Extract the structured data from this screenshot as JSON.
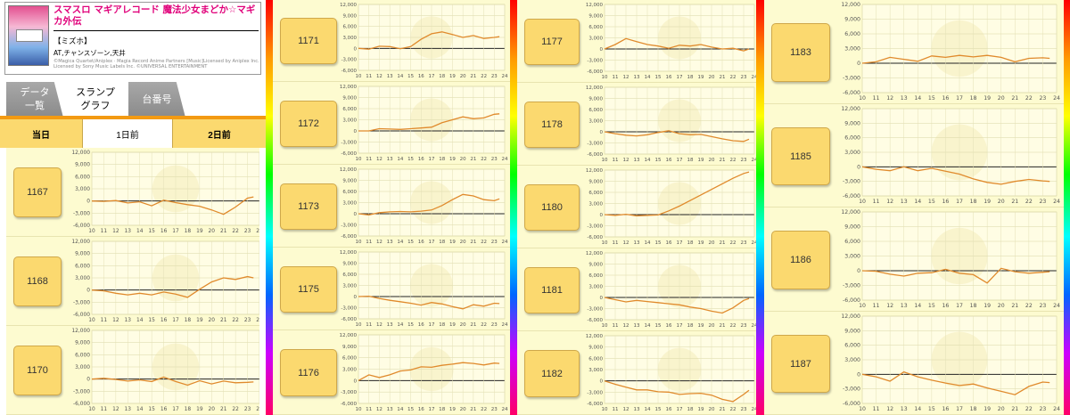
{
  "machine": {
    "title": "スマスロ マギアレコード 魔法少女まどか☆マギカ外伝",
    "area": "【ミズホ】",
    "type": "AT,チャンスゾーン,天井",
    "copyright": "©Magica Quartet/Aniplex · Magia Record Anime Partners [Music]Licensed by Aniplex Inc. Licensed by Sony Music Labels Inc. ©UNIVERSAL ENTERTAINMENT"
  },
  "tabs": [
    {
      "label": "データ\n一覧"
    },
    {
      "label": "スランプ\nグラフ"
    },
    {
      "label": "台番号"
    }
  ],
  "days": [
    {
      "label": "当日"
    },
    {
      "label": "1日前"
    },
    {
      "label": "2日前"
    }
  ],
  "axis": {
    "y_ticks": [
      "12,000",
      "9,000",
      "6,000",
      "3,000",
      "0",
      "-3,000",
      "-6,000"
    ],
    "x_ticks": [
      "10",
      "11",
      "12",
      "13",
      "14",
      "15",
      "16",
      "17",
      "18",
      "19",
      "20",
      "21",
      "22",
      "23",
      "24"
    ]
  },
  "chart_data": [
    {
      "type": "line",
      "machine": "1167",
      "ylim": [
        -6000,
        12000
      ],
      "x": [
        10,
        11,
        12,
        13,
        14,
        15,
        16,
        17,
        18,
        19,
        20,
        21,
        22,
        23,
        23.5
      ],
      "y": [
        0,
        -100,
        100,
        -500,
        -200,
        -1200,
        200,
        -400,
        -900,
        -1300,
        -2200,
        -3300,
        -1500,
        700,
        1000
      ]
    },
    {
      "type": "line",
      "machine": "1168",
      "ylim": [
        -6000,
        12000
      ],
      "x": [
        10,
        11,
        12,
        13,
        14,
        15,
        16,
        17,
        18,
        19,
        20,
        21,
        22,
        23,
        23.5
      ],
      "y": [
        0,
        -200,
        -800,
        -1200,
        -800,
        -1200,
        -500,
        -1000,
        -1800,
        200,
        2000,
        3000,
        2600,
        3300,
        3000
      ]
    },
    {
      "type": "line",
      "machine": "1170",
      "ylim": [
        -6000,
        12000
      ],
      "x": [
        10,
        11,
        12,
        13,
        14,
        15,
        16,
        17,
        18,
        19,
        20,
        21,
        22,
        23,
        23.5
      ],
      "y": [
        0,
        200,
        -100,
        -500,
        -200,
        -600,
        500,
        -600,
        -1500,
        -400,
        -1200,
        -500,
        -900,
        -800,
        -700
      ]
    },
    {
      "type": "line",
      "machine": "1171",
      "ylim": [
        -6000,
        12000
      ],
      "x": [
        10,
        11,
        12,
        13,
        14,
        15,
        16,
        17,
        18,
        19,
        20,
        21,
        22,
        23,
        23.5
      ],
      "y": [
        0,
        -200,
        600,
        500,
        -100,
        500,
        2500,
        4000,
        4500,
        3800,
        3000,
        3500,
        2700,
        3000,
        3200
      ]
    },
    {
      "type": "line",
      "machine": "1172",
      "ylim": [
        -6000,
        12000
      ],
      "x": [
        10,
        11,
        12,
        13,
        14,
        15,
        16,
        17,
        18,
        19,
        20,
        21,
        22,
        23,
        23.5
      ],
      "y": [
        0,
        0,
        600,
        500,
        400,
        600,
        800,
        1000,
        2200,
        3000,
        3800,
        3300,
        3500,
        4500,
        4600
      ]
    },
    {
      "type": "line",
      "machine": "1173",
      "ylim": [
        -6000,
        12000
      ],
      "x": [
        10,
        11,
        12,
        13,
        14,
        15,
        16,
        17,
        18,
        19,
        20,
        21,
        22,
        23,
        23.5
      ],
      "y": [
        0,
        -300,
        300,
        500,
        600,
        500,
        700,
        1000,
        2200,
        3800,
        5200,
        4800,
        3800,
        3500,
        4000
      ]
    },
    {
      "type": "line",
      "machine": "1175",
      "ylim": [
        -6000,
        12000
      ],
      "x": [
        10,
        11,
        12,
        13,
        14,
        15,
        16,
        17,
        18,
        19,
        20,
        21,
        22,
        23,
        23.5
      ],
      "y": [
        0,
        100,
        -500,
        -1000,
        -1400,
        -1800,
        -2300,
        -1600,
        -2000,
        -2700,
        -3300,
        -2200,
        -2600,
        -1800,
        -1900
      ]
    },
    {
      "type": "line",
      "machine": "1176",
      "ylim": [
        -6000,
        12000
      ],
      "x": [
        10,
        11,
        12,
        13,
        14,
        15,
        16,
        17,
        18,
        19,
        20,
        21,
        22,
        23,
        23.5
      ],
      "y": [
        0,
        1500,
        800,
        1500,
        2500,
        2800,
        3600,
        3500,
        4000,
        4300,
        4700,
        4500,
        4100,
        4600,
        4500
      ]
    },
    {
      "type": "line",
      "machine": "1177",
      "ylim": [
        -6000,
        12000
      ],
      "x": [
        10,
        11,
        12,
        13,
        14,
        15,
        16,
        17,
        18,
        19,
        20,
        21,
        22,
        23,
        23.5
      ],
      "y": [
        0,
        1200,
        2800,
        2000,
        1200,
        800,
        200,
        1000,
        800,
        1200,
        500,
        0,
        200,
        -500,
        0
      ]
    },
    {
      "type": "line",
      "machine": "1178",
      "ylim": [
        -6000,
        12000
      ],
      "x": [
        10,
        11,
        12,
        13,
        14,
        15,
        16,
        17,
        18,
        19,
        20,
        21,
        22,
        23,
        23.5
      ],
      "y": [
        0,
        -500,
        -900,
        -1100,
        -800,
        -200,
        300,
        -500,
        -800,
        -700,
        -1300,
        -1900,
        -2400,
        -2600,
        -2000
      ]
    },
    {
      "type": "line",
      "machine": "1180",
      "ylim": [
        -6000,
        12000
      ],
      "x": [
        10,
        11,
        12,
        13,
        14,
        15,
        16,
        17,
        18,
        19,
        20,
        21,
        22,
        23,
        23.5
      ],
      "y": [
        0,
        -200,
        100,
        -300,
        -200,
        -100,
        1000,
        2300,
        3800,
        5300,
        6800,
        8300,
        9800,
        11100,
        11500
      ]
    },
    {
      "type": "line",
      "machine": "1181",
      "ylim": [
        -6000,
        12000
      ],
      "x": [
        10,
        11,
        12,
        13,
        14,
        15,
        16,
        17,
        18,
        19,
        20,
        21,
        22,
        23,
        23.5
      ],
      "y": [
        0,
        -600,
        -1200,
        -800,
        -1100,
        -1400,
        -1700,
        -2000,
        -2600,
        -3000,
        -3700,
        -4200,
        -2800,
        -800,
        -300
      ]
    },
    {
      "type": "line",
      "machine": "1182",
      "ylim": [
        -6000,
        12000
      ],
      "x": [
        10,
        11,
        12,
        13,
        14,
        15,
        16,
        17,
        18,
        19,
        20,
        21,
        22,
        23,
        23.5
      ],
      "y": [
        0,
        -900,
        -1700,
        -2400,
        -2400,
        -2900,
        -3000,
        -3600,
        -3400,
        -3300,
        -3800,
        -4900,
        -5500,
        -3600,
        -2500
      ]
    },
    {
      "type": "line",
      "machine": "1183",
      "ylim": [
        -6000,
        12000
      ],
      "x": [
        10,
        11,
        12,
        13,
        14,
        15,
        16,
        17,
        18,
        19,
        20,
        21,
        22,
        23,
        23.5
      ],
      "y": [
        0,
        300,
        1200,
        800,
        400,
        1500,
        1200,
        1600,
        1300,
        1600,
        1200,
        300,
        1000,
        1100,
        1000
      ]
    },
    {
      "type": "line",
      "machine": "1185",
      "ylim": [
        -6000,
        12000
      ],
      "x": [
        10,
        11,
        12,
        13,
        14,
        15,
        16,
        17,
        18,
        19,
        20,
        21,
        22,
        23,
        23.5
      ],
      "y": [
        0,
        -500,
        -800,
        0,
        -800,
        -300,
        -900,
        -1500,
        -2500,
        -3200,
        -3600,
        -3000,
        -2600,
        -2900,
        -3000
      ]
    },
    {
      "type": "line",
      "machine": "1186",
      "ylim": [
        -6000,
        12000
      ],
      "x": [
        10,
        11,
        12,
        13,
        14,
        15,
        16,
        17,
        18,
        19,
        20,
        21,
        22,
        23,
        23.5
      ],
      "y": [
        0,
        -100,
        -700,
        -1100,
        -500,
        -400,
        300,
        -500,
        -800,
        -2500,
        500,
        -200,
        -500,
        -300,
        -200
      ]
    },
    {
      "type": "line",
      "machine": "1187",
      "ylim": [
        -6000,
        12000
      ],
      "x": [
        10,
        11,
        12,
        13,
        14,
        15,
        16,
        17,
        18,
        19,
        20,
        21,
        22,
        23,
        23.5
      ],
      "y": [
        0,
        -500,
        -1400,
        500,
        -500,
        -1200,
        -1800,
        -2300,
        -2000,
        -2800,
        -3500,
        -4200,
        -2500,
        -1600,
        -1700
      ]
    }
  ]
}
